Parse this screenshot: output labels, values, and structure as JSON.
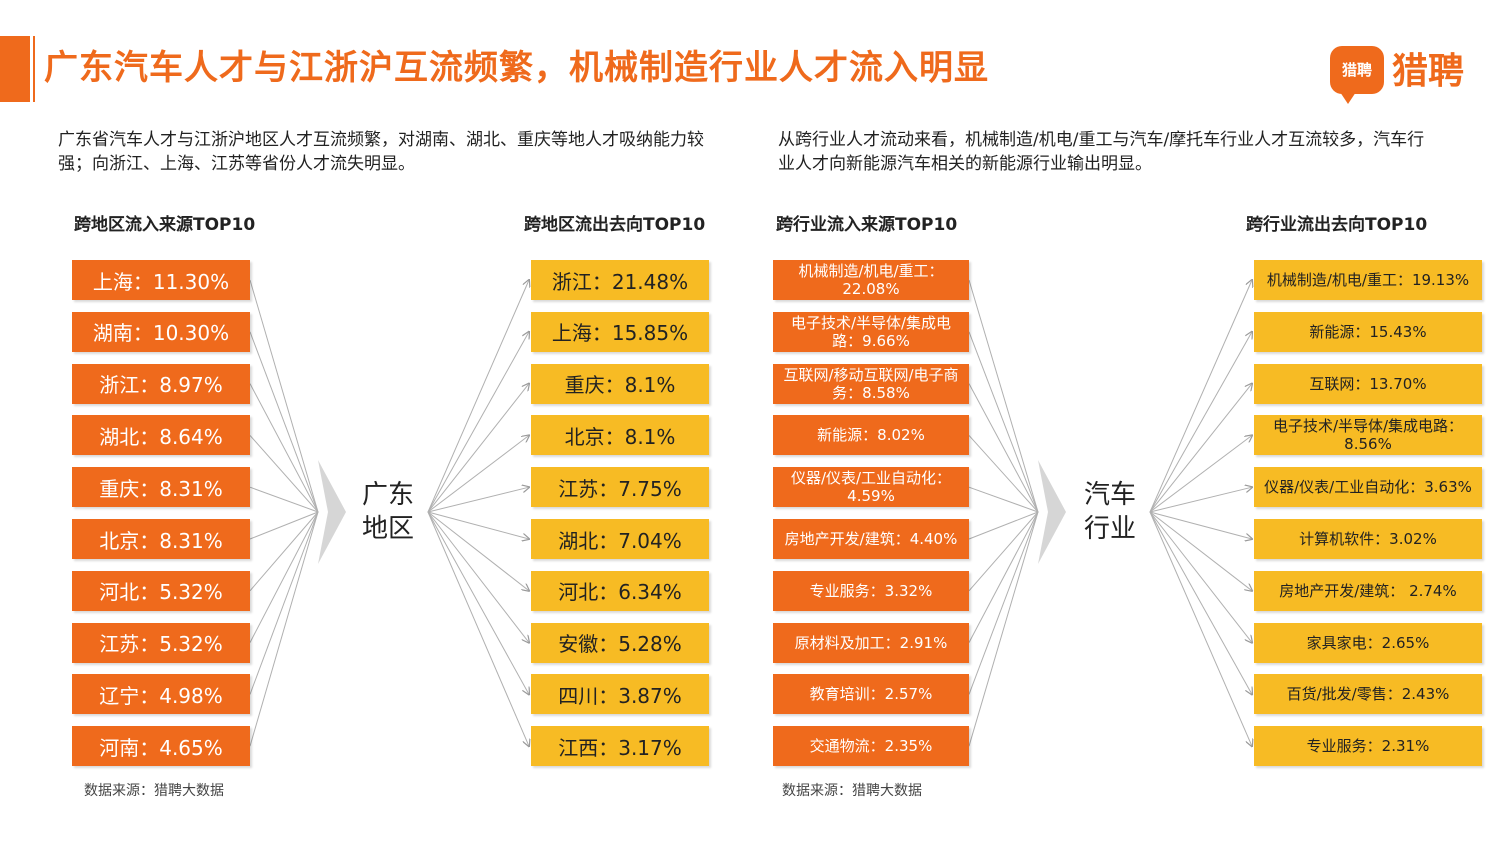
{
  "header": {
    "title": "广东汽车人才与江浙沪互流频繁，机械制造行业人才流入明显",
    "brand_icon_text": "猎聘",
    "brand_name": "猎聘"
  },
  "left": {
    "description": "广东省汽车人才与江浙沪地区人才互流频繁，对湖南、湖北、重庆等地人才吸纳能力较强；向浙江、上海、江苏等省份人才流失明显。",
    "inflow_title": "跨地区流入来源TOP10",
    "outflow_title": "跨地区流出去向TOP10",
    "hub_line1": "广东",
    "hub_line2": "地区",
    "inflow": [
      "上海：11.30%",
      "湖南：10.30%",
      "浙江：8.97%",
      "湖北：8.64%",
      "重庆：8.31%",
      "北京：8.31%",
      "河北：5.32%",
      "江苏：5.32%",
      "辽宁：4.98%",
      "河南：4.65%"
    ],
    "outflow": [
      "浙江：21.48%",
      "上海：15.85%",
      "重庆：8.1%",
      "北京：8.1%",
      "江苏：7.75%",
      "湖北：7.04%",
      "河北：6.34%",
      "安徽：5.28%",
      "四川：3.87%",
      "江西：3.17%"
    ],
    "source": "数据来源：猎聘大数据"
  },
  "right": {
    "description": "从跨行业人才流动来看，机械制造/机电/重工与汽车/摩托车行业人才互流较多，汽车行业人才向新能源汽车相关的新能源行业输出明显。",
    "inflow_title": "跨行业流入来源TOP10",
    "outflow_title": "跨行业流出去向TOP10",
    "hub_line1": "汽车",
    "hub_line2": "行业",
    "inflow": [
      "机械制造/机电/重工：22.08%",
      "电子技术/半导体/集成电路：9.66%",
      "互联网/移动互联网/电子商务：8.58%",
      "新能源：8.02%",
      "仪器/仪表/工业自动化：4.59%",
      "房地产开发/建筑：4.40%",
      "专业服务：3.32%",
      "原材料及加工：2.91%",
      "教育培训：2.57%",
      "交通物流：2.35%"
    ],
    "outflow": [
      "机械制造/机电/重工：19.13%",
      "新能源：15.43%",
      "互联网：13.70%",
      "电子技术/半导体/集成电路：8.56%",
      "仪器/仪表/工业自动化：3.63%",
      "计算机软件：3.02%",
      "房地产开发/建筑： 2.74%",
      "家具家电：2.65%",
      "百货/批发/零售：2.43%",
      "专业服务：2.31%"
    ],
    "source": "数据来源：猎聘大数据"
  },
  "colors": {
    "orange": "#ef6a1c",
    "yellow": "#f7bb24",
    "line": "#b0b0b0"
  }
}
